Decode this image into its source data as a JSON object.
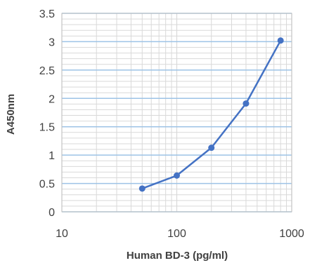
{
  "chart_data": {
    "type": "line",
    "title": "",
    "xlabel": "Human BD-3 (pg/ml)",
    "ylabel": "A450nm",
    "x_scale": "log",
    "xlim": [
      10,
      1000
    ],
    "ylim": [
      0,
      3.5
    ],
    "x_ticks": [
      10,
      100,
      1000
    ],
    "x_tick_labels": [
      "10",
      "100",
      "1000"
    ],
    "y_ticks": [
      0,
      0.5,
      1,
      1.5,
      2,
      2.5,
      3,
      3.5
    ],
    "y_tick_labels": [
      "0",
      "0.5",
      "1",
      "1.5",
      "2",
      "2.5",
      "3",
      "3.5"
    ],
    "grid": true,
    "legend": "none",
    "series_color": "#4472c4",
    "gridline_color": "#9dc3e6",
    "minor_grid_color": "#d9d9d9",
    "series": [
      {
        "x": [
          50,
          100,
          200,
          400,
          800
        ],
        "y": [
          0.41,
          0.64,
          1.13,
          1.91,
          3.02
        ]
      }
    ]
  }
}
